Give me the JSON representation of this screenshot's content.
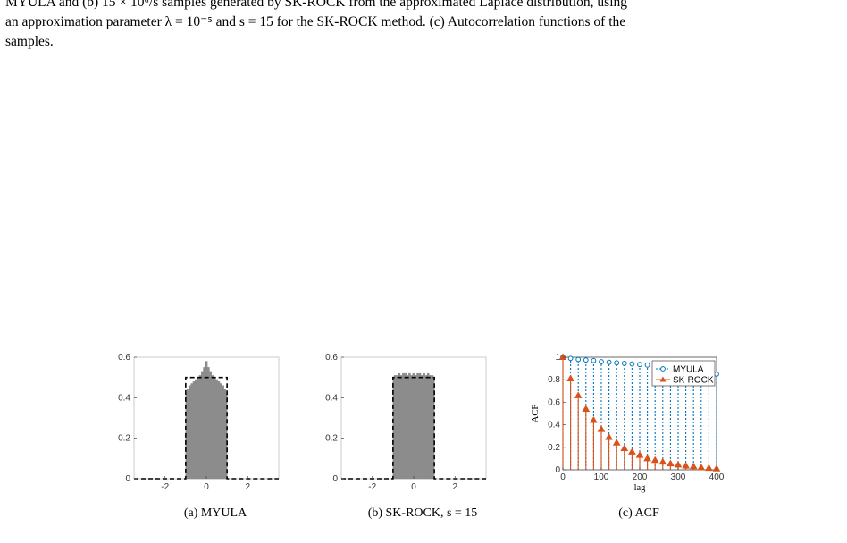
{
  "caption": {
    "line1": "MYULA and (b) 15 × 10⁶/s samples generated by SK-ROCK from the approximated Laplace distribution, using",
    "line2": "an approximation parameter λ = 10⁻⁵ and s = 15 for the SK-ROCK method. (c) Autocorrelation functions of the",
    "line3": "samples."
  },
  "subcaptions": {
    "a": "(a) MYULA",
    "b": "(b) SK-ROCK, s = 15",
    "c": "(c) ACF"
  },
  "chart_data": [
    {
      "type": "area",
      "subcaption": "(a) MYULA",
      "xlim": [
        -3.5,
        3.5
      ],
      "ylim": [
        0,
        0.6
      ],
      "xticks": [
        "-2",
        "0",
        "2"
      ],
      "yticks": [
        "0",
        "0.2",
        "0.4",
        "0.6"
      ],
      "histogram": {
        "x": [
          -1.0,
          -0.9,
          -0.8,
          -0.7,
          -0.6,
          -0.5,
          -0.4,
          -0.3,
          -0.2,
          -0.1,
          0.0,
          0.1,
          0.2,
          0.3,
          0.4,
          0.5,
          0.6,
          0.7,
          0.8,
          0.9,
          1.0
        ],
        "y": [
          0.42,
          0.44,
          0.46,
          0.47,
          0.48,
          0.49,
          0.5,
          0.51,
          0.53,
          0.55,
          0.58,
          0.55,
          0.53,
          0.51,
          0.5,
          0.49,
          0.48,
          0.47,
          0.46,
          0.44,
          0.42
        ]
      },
      "reference_density": {
        "x": [
          -3.5,
          -1,
          -1,
          1,
          1,
          3.5
        ],
        "y": [
          0,
          0,
          0.5,
          0.5,
          0,
          0
        ]
      }
    },
    {
      "type": "area",
      "subcaption": "(b) SK-ROCK, s = 15",
      "xlim": [
        -3.5,
        3.5
      ],
      "ylim": [
        0,
        0.6
      ],
      "xticks": [
        "-2",
        "0",
        "2"
      ],
      "yticks": [
        "0",
        "0.2",
        "0.4",
        "0.6"
      ],
      "histogram": {
        "x": [
          -1.0,
          -0.9,
          -0.8,
          -0.7,
          -0.6,
          -0.5,
          -0.4,
          -0.3,
          -0.2,
          -0.1,
          0.0,
          0.1,
          0.2,
          0.3,
          0.4,
          0.5,
          0.6,
          0.7,
          0.8,
          0.9,
          1.0
        ],
        "y": [
          0.5,
          0.51,
          0.51,
          0.52,
          0.51,
          0.52,
          0.52,
          0.51,
          0.52,
          0.51,
          0.52,
          0.51,
          0.52,
          0.52,
          0.51,
          0.52,
          0.51,
          0.52,
          0.51,
          0.51,
          0.5
        ]
      },
      "reference_density": {
        "x": [
          -3.5,
          -1,
          -1,
          1,
          1,
          3.5
        ],
        "y": [
          0,
          0,
          0.5,
          0.5,
          0,
          0
        ]
      }
    },
    {
      "type": "line",
      "subcaption": "(c) ACF",
      "xlabel": "lag",
      "ylabel": "ACF",
      "xlim": [
        0,
        400
      ],
      "ylim": [
        0,
        1
      ],
      "xticks": [
        "0",
        "100",
        "200",
        "300",
        "400"
      ],
      "yticks": [
        "0",
        "0.2",
        "0.4",
        "0.6",
        "0.8",
        "1"
      ],
      "legend_position": "top-right",
      "series": [
        {
          "name": "MYULA",
          "color": "#0072BD",
          "marker": "circle",
          "x": [
            0,
            20,
            40,
            60,
            80,
            100,
            120,
            140,
            160,
            180,
            200,
            220,
            240,
            260,
            280,
            300,
            320,
            340,
            360,
            380,
            400
          ],
          "y": [
            1.0,
            0.99,
            0.98,
            0.975,
            0.97,
            0.96,
            0.955,
            0.95,
            0.945,
            0.94,
            0.935,
            0.93,
            0.925,
            0.92,
            0.915,
            0.91,
            0.905,
            0.9,
            0.895,
            0.89,
            0.85
          ]
        },
        {
          "name": "SK-ROCK",
          "color": "#D95319",
          "marker": "triangle",
          "x": [
            0,
            20,
            40,
            60,
            80,
            100,
            120,
            140,
            160,
            180,
            200,
            220,
            240,
            260,
            280,
            300,
            320,
            340,
            360,
            380,
            400
          ],
          "y": [
            1.0,
            0.81,
            0.66,
            0.54,
            0.44,
            0.36,
            0.29,
            0.24,
            0.19,
            0.16,
            0.13,
            0.1,
            0.085,
            0.07,
            0.055,
            0.045,
            0.035,
            0.03,
            0.02,
            0.015,
            0.01
          ]
        }
      ]
    }
  ]
}
